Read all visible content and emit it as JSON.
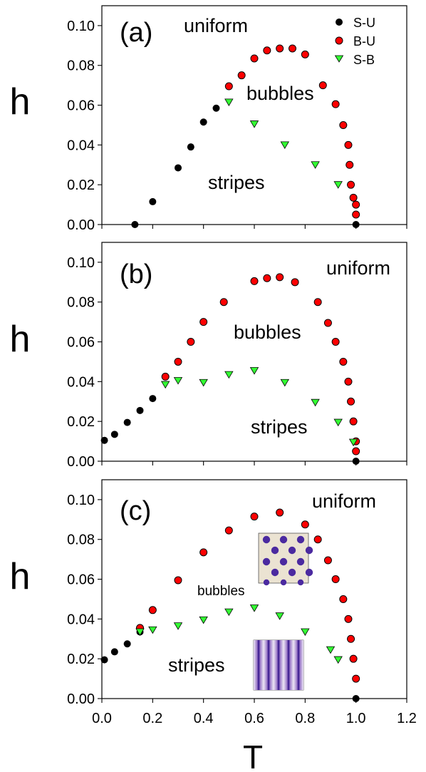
{
  "colors": {
    "S-U": "#000000",
    "B-U": "#ff0000",
    "S-B": "#33ff33"
  },
  "axes": {
    "ylabel": "h",
    "xlabel": "T",
    "xlim": [
      0.0,
      1.2
    ],
    "ylim": [
      0.0,
      0.11
    ],
    "x_ticks": [
      "0.0",
      "0.2",
      "0.4",
      "0.6",
      "0.8",
      "1.0",
      "1.2"
    ],
    "y_ticks": [
      "0.00",
      "0.02",
      "0.04",
      "0.06",
      "0.08",
      "0.10"
    ]
  },
  "legend": {
    "placement": "top-right of panel (a)",
    "entries": [
      {
        "key": "S-U",
        "label": "S-U",
        "marker": "circle"
      },
      {
        "key": "B-U",
        "label": "B-U",
        "marker": "circle"
      },
      {
        "key": "S-B",
        "label": "S-B",
        "marker": "triangle-down"
      }
    ]
  },
  "chart_data": [
    {
      "type": "scatter",
      "panel": "(a)",
      "xlim": [
        0.0,
        1.2
      ],
      "ylim": [
        0.0,
        0.11
      ],
      "regions": [
        "uniform",
        "bubbles",
        "stripes"
      ],
      "series": [
        {
          "name": "S-U",
          "x": [
            0.13,
            0.2,
            0.3,
            0.35,
            0.4,
            0.45,
            1.0
          ],
          "y": [
            0.0,
            0.0115,
            0.0285,
            0.039,
            0.0515,
            0.0585,
            0.0
          ]
        },
        {
          "name": "B-U",
          "x": [
            0.5,
            0.55,
            0.6,
            0.65,
            0.7,
            0.75,
            0.8,
            0.87,
            0.92,
            0.95,
            0.97,
            0.975,
            0.98,
            0.99,
            1.0,
            1.0
          ],
          "y": [
            0.0695,
            0.075,
            0.0835,
            0.0875,
            0.0885,
            0.0885,
            0.0855,
            0.07,
            0.0605,
            0.05,
            0.04,
            0.03,
            0.02,
            0.0135,
            0.01,
            0.005
          ]
        },
        {
          "name": "S-B",
          "x": [
            0.5,
            0.6,
            0.72,
            0.84,
            0.93
          ],
          "y": [
            0.0615,
            0.0505,
            0.04,
            0.03,
            0.02
          ]
        }
      ]
    },
    {
      "type": "scatter",
      "panel": "(b)",
      "xlim": [
        0.0,
        1.2
      ],
      "ylim": [
        0.0,
        0.11
      ],
      "regions": [
        "uniform",
        "bubbles",
        "stripes"
      ],
      "series": [
        {
          "name": "S-U",
          "x": [
            0.01,
            0.05,
            0.1,
            0.15,
            0.2,
            1.0
          ],
          "y": [
            0.0105,
            0.0135,
            0.0195,
            0.0255,
            0.0315,
            0.0
          ]
        },
        {
          "name": "B-U",
          "x": [
            0.25,
            0.3,
            0.35,
            0.4,
            0.48,
            0.6,
            0.65,
            0.7,
            0.76,
            0.85,
            0.89,
            0.92,
            0.95,
            0.97,
            0.98,
            0.99,
            1.0,
            1.0
          ],
          "y": [
            0.0425,
            0.05,
            0.06,
            0.07,
            0.08,
            0.0905,
            0.092,
            0.0925,
            0.09,
            0.08,
            0.0695,
            0.06,
            0.05,
            0.04,
            0.03,
            0.02,
            0.01,
            0.005
          ]
        },
        {
          "name": "S-B",
          "x": [
            0.25,
            0.3,
            0.4,
            0.5,
            0.6,
            0.72,
            0.84,
            0.93,
            0.99
          ],
          "y": [
            0.0385,
            0.0405,
            0.0395,
            0.0435,
            0.0455,
            0.0395,
            0.0295,
            0.0195,
            0.0095
          ]
        }
      ]
    },
    {
      "type": "scatter",
      "panel": "(c)",
      "xlim": [
        0.0,
        1.2
      ],
      "ylim": [
        0.0,
        0.11
      ],
      "regions": [
        "uniform",
        "bubbles",
        "stripes"
      ],
      "series": [
        {
          "name": "S-U",
          "x": [
            0.01,
            0.05,
            0.1,
            0.15,
            1.0
          ],
          "y": [
            0.0195,
            0.0235,
            0.0275,
            0.0335,
            0.0
          ]
        },
        {
          "name": "B-U",
          "x": [
            0.15,
            0.2,
            0.3,
            0.4,
            0.5,
            0.6,
            0.7,
            0.8,
            0.85,
            0.89,
            0.92,
            0.95,
            0.97,
            0.98,
            0.99,
            1.0
          ],
          "y": [
            0.0355,
            0.0445,
            0.0595,
            0.0735,
            0.0845,
            0.0915,
            0.0935,
            0.0875,
            0.08,
            0.0695,
            0.06,
            0.05,
            0.04,
            0.03,
            0.02,
            0.01
          ]
        },
        {
          "name": "S-B",
          "x": [
            0.15,
            0.2,
            0.3,
            0.4,
            0.5,
            0.6,
            0.7,
            0.8,
            0.9,
            0.93
          ],
          "y": [
            0.0335,
            0.0345,
            0.0365,
            0.0395,
            0.0435,
            0.0455,
            0.0415,
            0.0335,
            0.0245,
            0.0195
          ]
        }
      ]
    }
  ]
}
